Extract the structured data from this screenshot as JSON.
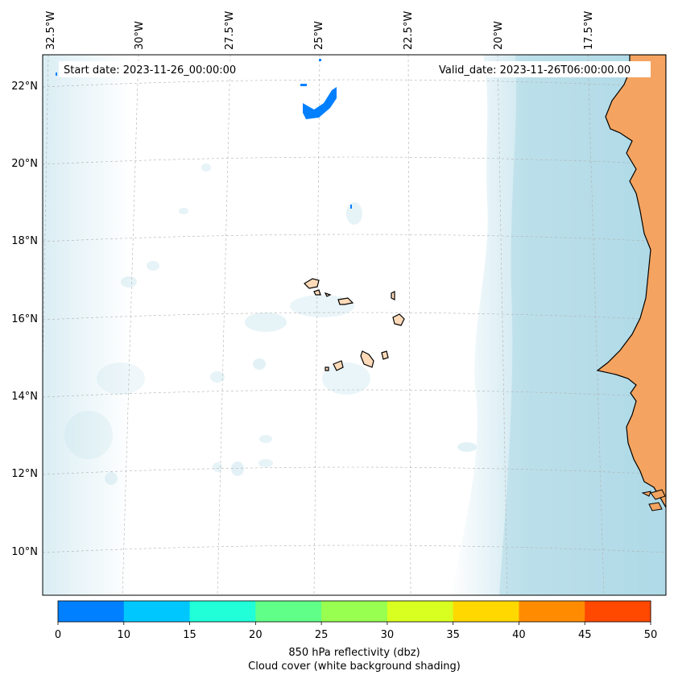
{
  "map": {
    "start_label": "Start date: 2023-11-26_00:00:00",
    "valid_label": "Valid_date: 2023-11-26T06:00:00.00",
    "lon_ticks": [
      "32.5°W",
      "30°W",
      "27.5°W",
      "25°W",
      "22.5°W",
      "20°W",
      "17.5°W"
    ],
    "lat_ticks": [
      "22°N",
      "20°N",
      "18°N",
      "16°N",
      "14°N",
      "12°N",
      "10°N"
    ],
    "colors": {
      "land": "#f4a460",
      "islands": "#ffdab9",
      "cloud": "#add8e6",
      "coastline": "#000000",
      "reflectivity_echo": "#0080ff"
    }
  },
  "colorbar": {
    "boundaries": [
      0,
      10,
      15,
      20,
      25,
      30,
      35,
      40,
      45,
      50
    ],
    "colors": [
      "#0080ff",
      "#00c8ff",
      "#20ffd8",
      "#60ff88",
      "#98ff50",
      "#d8ff20",
      "#ffd800",
      "#ff8c00",
      "#ff4800"
    ],
    "tick_labels": [
      "0",
      "10",
      "15",
      "20",
      "25",
      "30",
      "35",
      "40",
      "45",
      "50"
    ],
    "label_line1": "850 hPa reflectivity (dbz)",
    "label_line2": "Cloud cover (white background shading)"
  }
}
